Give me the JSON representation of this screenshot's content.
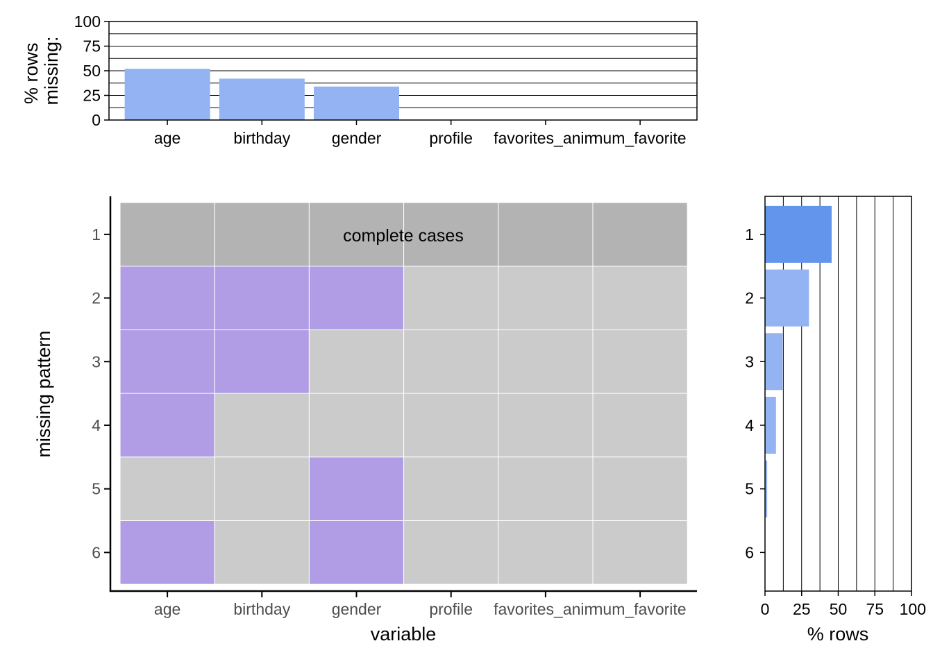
{
  "chart_data": [
    {
      "type": "bar",
      "ylabel": [
        "% rows",
        "missing:"
      ],
      "categories": [
        "age",
        "birthday",
        "gender",
        "profile",
        "favorites_anime",
        "num_favorite"
      ],
      "tick_labels": [
        "age",
        "birthday",
        "gender",
        "profile",
        "favorites_anim",
        "num_favorite"
      ],
      "values": [
        52,
        42,
        34,
        0,
        0,
        0
      ],
      "ylim": [
        0,
        100
      ],
      "yticks": [
        0,
        25,
        50,
        75,
        100
      ],
      "grid": true,
      "colors": {
        "bar": "#93b3f2",
        "grid": "#000000"
      }
    },
    {
      "type": "heatmap",
      "xlabel": "variable",
      "ylabel": "missing pattern",
      "x": [
        "age",
        "birthday",
        "gender",
        "profile",
        "favorites_anime",
        "num_favorite"
      ],
      "x_tick_labels": [
        "age",
        "birthday",
        "gender",
        "profile",
        "favorites_anim",
        "num_favorite"
      ],
      "y": [
        "1",
        "2",
        "3",
        "4",
        "5",
        "6"
      ],
      "annotation": "complete cases",
      "pattern_missing": [
        [
          0,
          0,
          0,
          0,
          0,
          0
        ],
        [
          1,
          1,
          1,
          0,
          0,
          0
        ],
        [
          1,
          1,
          0,
          0,
          0,
          0
        ],
        [
          1,
          0,
          0,
          0,
          0,
          0
        ],
        [
          0,
          0,
          1,
          0,
          0,
          0
        ],
        [
          1,
          0,
          1,
          0,
          0,
          0
        ]
      ],
      "colors": {
        "complete": "#b3b3b3",
        "missing": "#b19ce6",
        "present": "#cbcbcb"
      }
    },
    {
      "type": "bar",
      "orientation": "horizontal",
      "xlabel": "% rows",
      "categories": [
        "1",
        "2",
        "3",
        "4",
        "5",
        "6"
      ],
      "values": [
        45.5,
        30,
        12,
        7.5,
        1.5,
        0
      ],
      "xlim": [
        0,
        100
      ],
      "xticks": [
        0,
        25,
        50,
        75,
        100
      ],
      "grid": true,
      "colors": {
        "complete": "#6495ed",
        "bar": "#93b3f2",
        "grid": "#000000"
      }
    }
  ]
}
